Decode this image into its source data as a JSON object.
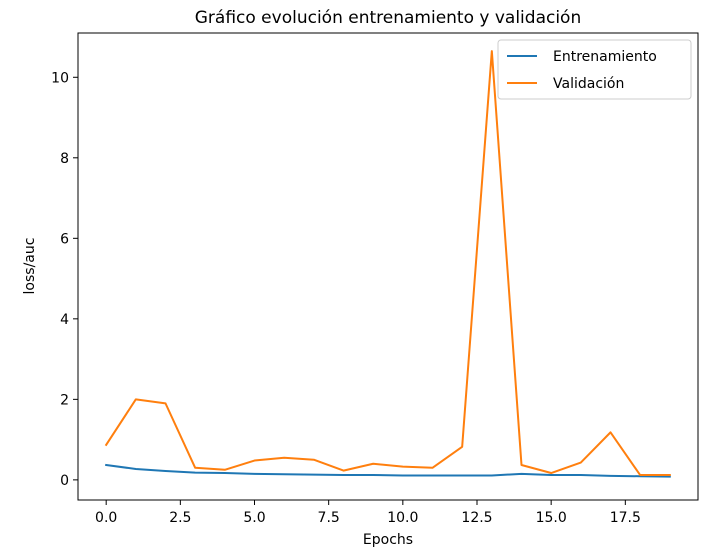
{
  "chart_data": {
    "type": "line",
    "title": "Gráfico evolución entrenamiento y validación",
    "xlabel": "Epochs",
    "ylabel": "loss/auc",
    "xlim": [
      -0.95,
      19.95
    ],
    "ylim": [
      -0.5,
      11.1
    ],
    "xticks": [
      0.0,
      2.5,
      5.0,
      7.5,
      10.0,
      12.5,
      15.0,
      17.5
    ],
    "xtick_labels": [
      "0.0",
      "2.5",
      "5.0",
      "7.5",
      "10.0",
      "12.5",
      "15.0",
      "17.5"
    ],
    "yticks": [
      0,
      2,
      4,
      6,
      8,
      10
    ],
    "ytick_labels": [
      "0",
      "2",
      "4",
      "6",
      "8",
      "10"
    ],
    "grid": false,
    "legend": "top-right",
    "x": [
      0,
      1,
      2,
      3,
      4,
      5,
      6,
      7,
      8,
      9,
      10,
      11,
      12,
      13,
      14,
      15,
      16,
      17,
      18,
      19
    ],
    "series": [
      {
        "name": "Entrenamiento",
        "color": "#1f77b4",
        "values": [
          0.37,
          0.27,
          0.22,
          0.18,
          0.17,
          0.15,
          0.14,
          0.13,
          0.12,
          0.12,
          0.11,
          0.11,
          0.11,
          0.11,
          0.15,
          0.12,
          0.12,
          0.1,
          0.09,
          0.08
        ]
      },
      {
        "name": "Validación",
        "color": "#ff7f0e",
        "values": [
          0.87,
          2.0,
          1.9,
          0.3,
          0.25,
          0.48,
          0.55,
          0.5,
          0.23,
          0.4,
          0.33,
          0.3,
          0.82,
          10.65,
          0.37,
          0.17,
          0.43,
          1.18,
          0.12,
          0.12
        ]
      }
    ]
  }
}
